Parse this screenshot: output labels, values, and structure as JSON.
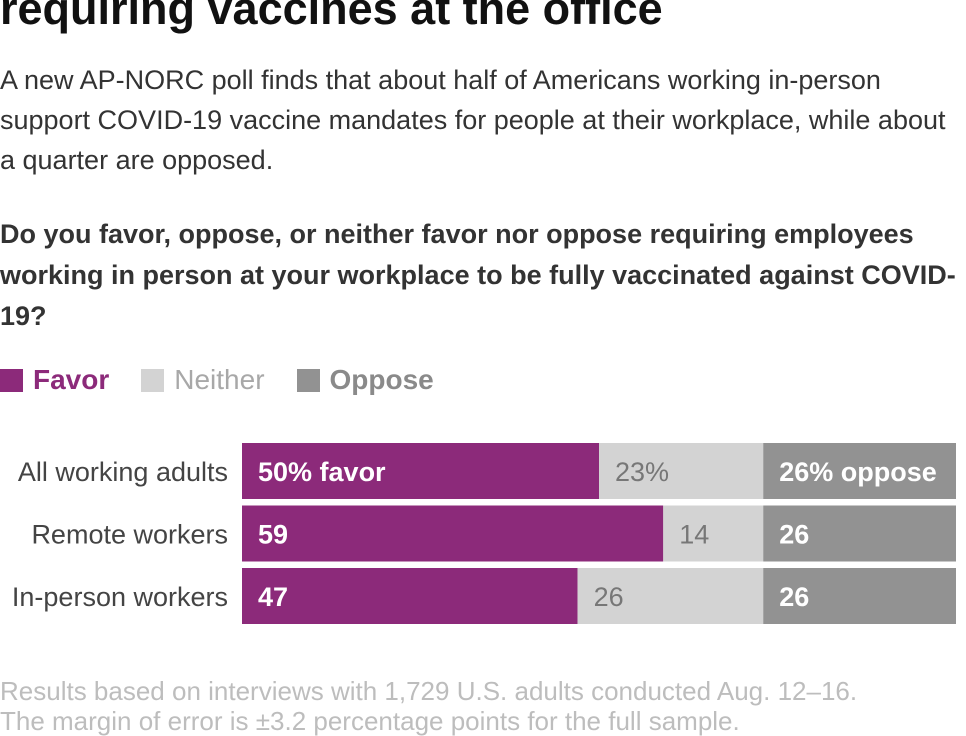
{
  "header": {
    "title": "requiring vaccines at the office",
    "subtitle": "A new AP-NORC poll finds that about half of Americans working in-person support COVID-19 vaccine mandates for people at their workplace, while about a quarter are opposed.",
    "question": "Do you favor, oppose, or neither favor nor oppose requiring employees working in person at your workplace to be fully vaccinated against COVID-19?"
  },
  "legend": {
    "favor": "Favor",
    "neither": "Neither",
    "oppose": "Oppose"
  },
  "colors": {
    "favor": "#8c2a7a",
    "neither": "#d3d3d3",
    "oppose": "#929292",
    "neither_label": "#777777",
    "legend_neither_text": "#a8a8a8",
    "legend_oppose_text": "#8a8a8a"
  },
  "chart_data": {
    "type": "bar",
    "orientation": "horizontal",
    "stacked": true,
    "categories": [
      "All working adults",
      "Remote workers",
      "In-person workers"
    ],
    "series": [
      {
        "name": "Favor",
        "values": [
          50,
          59,
          47
        ],
        "labels": [
          "50% favor",
          "59",
          "47"
        ]
      },
      {
        "name": "Neither",
        "values": [
          23,
          14,
          26
        ],
        "labels": [
          "23%",
          "14",
          "26"
        ]
      },
      {
        "name": "Oppose",
        "values": [
          26,
          26,
          26
        ],
        "labels": [
          "26% oppose",
          "26",
          "26"
        ]
      }
    ],
    "xlim": [
      0,
      100
    ],
    "legend_position": "top-left"
  },
  "footnote": {
    "line1": "Results based on interviews with 1,729 U.S. adults conducted Aug. 12–16.",
    "line2": "The margin of error is ±3.2 percentage points for the full sample."
  }
}
